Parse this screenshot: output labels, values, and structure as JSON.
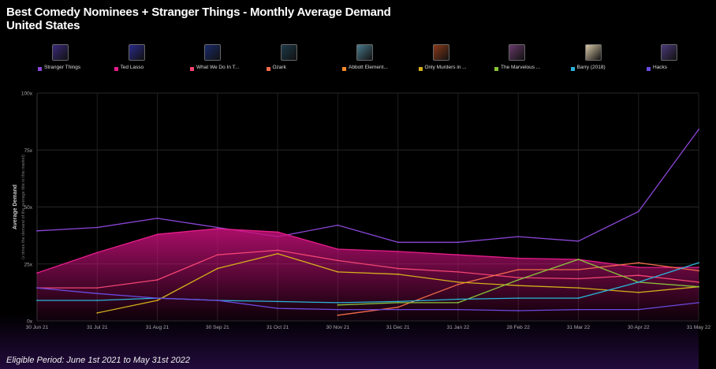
{
  "title": {
    "line1": "Best Comedy Nominees + Stranger Things - Monthly Average Demand",
    "line2": "United States"
  },
  "legend": [
    {
      "label": "Stranger Things",
      "color": "#8b46d6",
      "thumb": "#3a2a7a"
    },
    {
      "label": "Ted Lasso",
      "color": "#e81c8c",
      "thumb": "#2a2a8a"
    },
    {
      "label": "What We Do In T...",
      "color": "#f24472",
      "thumb": "#1a2a6a"
    },
    {
      "label": "Ozark",
      "color": "#f06a4a",
      "thumb": "#1e3a4a"
    },
    {
      "label": "Abbott Element...",
      "color": "#f58a2a",
      "thumb": "#4a7a8a"
    },
    {
      "label": "Only Murders in ...",
      "color": "#d4b01a",
      "thumb": "#8a3a1a"
    },
    {
      "label": "The Marvelous ...",
      "color": "#8ac43a",
      "thumb": "#6a3a6a"
    },
    {
      "label": "Barry (2018)",
      "color": "#2ab4d8",
      "thumb": "#d8c8a8"
    },
    {
      "label": "Hacks",
      "color": "#6a4ae0",
      "thumb": "#4a3a7a"
    }
  ],
  "chart_data": {
    "type": "line",
    "title": "Best Comedy Nominees + Stranger Things - Monthly Average Demand",
    "subtitle": "United States",
    "ylabel": "Average Demand",
    "ylabel_sub": "(x times the demand of the average title in this market)",
    "x": [
      "30 Jun 21",
      "31 Jul 21",
      "31 Aug 21",
      "30 Sep 21",
      "31 Oct 21",
      "30 Nov 21",
      "31 Dec 21",
      "31 Jan 22",
      "28 Feb 22",
      "31 Mar 22",
      "30 Apr 22",
      "31 May 22"
    ],
    "yticks": [
      "0x",
      "25x",
      "50x",
      "75x",
      "100x"
    ],
    "ylim": [
      0,
      100
    ],
    "series": [
      {
        "name": "Stranger Things",
        "color": "#8b46d6",
        "values": [
          39.5,
          41,
          45,
          41,
          37,
          42,
          34.5,
          34.5,
          37,
          35,
          48,
          84
        ]
      },
      {
        "name": "Ted Lasso",
        "color": "#e81c8c",
        "area": true,
        "values": [
          21,
          30,
          38,
          40.5,
          39,
          31.5,
          30.5,
          29,
          27.5,
          27,
          23.5,
          23.5
        ]
      },
      {
        "name": "What We Do In T...",
        "color": "#f24472",
        "values": [
          14.5,
          14.5,
          18,
          29,
          31,
          26.5,
          23,
          21.5,
          19,
          18.5,
          20,
          17
        ]
      },
      {
        "name": "Ozark",
        "color": "#f06a4a",
        "values": [
          null,
          null,
          null,
          null,
          null,
          2.5,
          6,
          16,
          22.5,
          22.5,
          25.5,
          22
        ]
      },
      {
        "name": "Only Murders in ...",
        "color": "#d4b01a",
        "values": [
          null,
          3.5,
          9,
          23,
          29.5,
          21.5,
          20.5,
          17,
          15.5,
          14.5,
          12.5,
          15
        ]
      },
      {
        "name": "The Marvelous ...",
        "color": "#8ac43a",
        "values": [
          null,
          null,
          null,
          null,
          null,
          7,
          8,
          8,
          18,
          27,
          17,
          15
        ]
      },
      {
        "name": "Barry (2018)",
        "color": "#2ab4d8",
        "values": [
          9,
          9,
          10,
          9,
          8.5,
          8,
          8.5,
          9.5,
          10,
          10,
          17,
          25.5
        ]
      },
      {
        "name": "Hacks",
        "color": "#6a4ae0",
        "values": [
          14.5,
          12,
          10,
          9,
          5.5,
          5,
          5,
          5,
          4.5,
          5,
          5,
          8
        ]
      }
    ]
  },
  "footer": "Eligible Period: June 1st 2021 to May 31st 2022"
}
